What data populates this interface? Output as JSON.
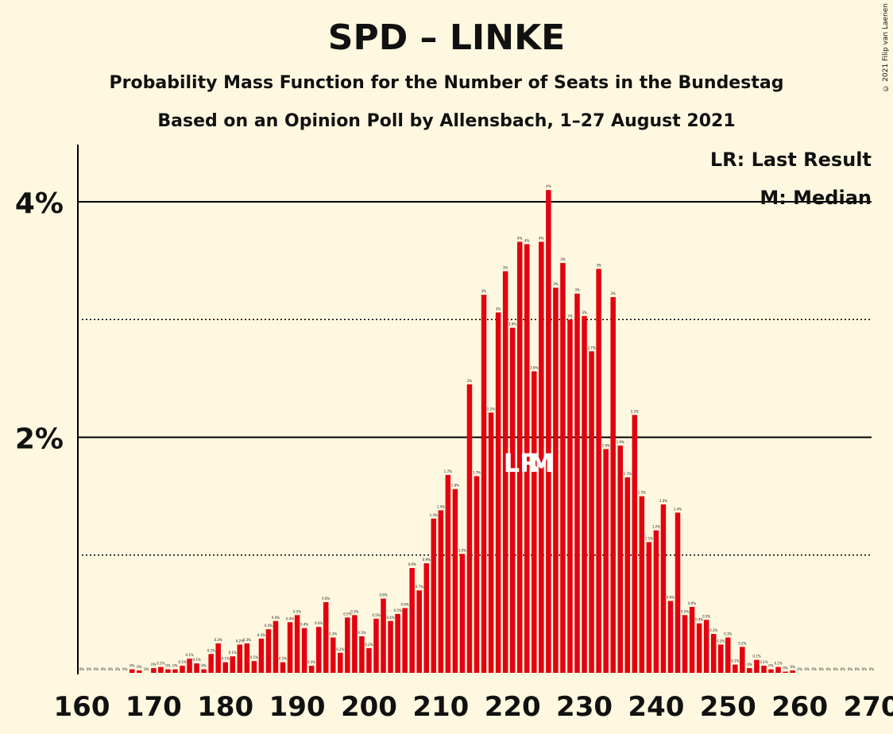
{
  "title": "SPD – LINKE",
  "subtitle": "Probability Mass Function for the Number of Seats in the Bundestag",
  "source": "Based on an Opinion Poll by Allensbach, 1–27 August 2021",
  "copyright": "© 2021 Filip van Laenen",
  "legend": {
    "lr": "LR: Last Result",
    "m": "M: Median"
  },
  "markers": {
    "lr": {
      "seat": 221,
      "label": "LR"
    },
    "median": {
      "seat": 224,
      "label": "M"
    }
  },
  "colors": {
    "bar": "#e3000f",
    "background": "#fff8e0",
    "text": "#111111"
  },
  "chart_data": {
    "type": "bar",
    "title": "SPD – LINKE",
    "xlabel": "",
    "ylabel": "",
    "xlim": [
      160,
      270
    ],
    "ylim": [
      0,
      4.5
    ],
    "x_ticks": [
      160,
      170,
      180,
      190,
      200,
      210,
      220,
      230,
      240,
      250,
      260,
      270
    ],
    "y_ticks": [
      {
        "value": 2,
        "label": "2%"
      },
      {
        "value": 4,
        "label": "4%"
      }
    ],
    "dotted_gridlines": [
      1,
      3
    ],
    "x": [
      160,
      161,
      162,
      163,
      164,
      165,
      166,
      167,
      168,
      169,
      170,
      171,
      172,
      173,
      174,
      175,
      176,
      177,
      178,
      179,
      180,
      181,
      182,
      183,
      184,
      185,
      186,
      187,
      188,
      189,
      190,
      191,
      192,
      193,
      194,
      195,
      196,
      197,
      198,
      199,
      200,
      201,
      202,
      203,
      204,
      205,
      206,
      207,
      208,
      209,
      210,
      211,
      212,
      213,
      214,
      215,
      216,
      217,
      218,
      219,
      220,
      221,
      222,
      223,
      224,
      225,
      226,
      227,
      228,
      229,
      230,
      231,
      232,
      233,
      234,
      235,
      236,
      237,
      238,
      239,
      240,
      241,
      242,
      243,
      244,
      245,
      246,
      247,
      248,
      249,
      250,
      251,
      252,
      253,
      254,
      255,
      256,
      257,
      258,
      259,
      260,
      261,
      262,
      263,
      264,
      265,
      266,
      267,
      268,
      269,
      270
    ],
    "values": [
      0,
      0,
      0,
      0,
      0,
      0,
      0,
      0.03,
      0.02,
      0,
      0.04,
      0.05,
      0.03,
      0.03,
      0.06,
      0.12,
      0.08,
      0.03,
      0.16,
      0.25,
      0.09,
      0.14,
      0.24,
      0.25,
      0.1,
      0.29,
      0.37,
      0.44,
      0.09,
      0.43,
      0.49,
      0.38,
      0.06,
      0.39,
      0.6,
      0.3,
      0.17,
      0.47,
      0.49,
      0.31,
      0.21,
      0.46,
      0.63,
      0.44,
      0.5,
      0.55,
      0.89,
      0.7,
      0.93,
      1.31,
      1.38,
      1.68,
      1.56,
      1.01,
      2.45,
      1.67,
      3.21,
      2.21,
      3.06,
      3.41,
      2.93,
      3.66,
      3.64,
      2.56,
      3.66,
      4.1,
      3.27,
      3.48,
      3.0,
      3.22,
      3.03,
      2.73,
      3.43,
      1.9,
      3.19,
      1.93,
      1.66,
      2.19,
      1.5,
      1.11,
      1.21,
      1.43,
      0.61,
      1.36,
      0.49,
      0.56,
      0.42,
      0.45,
      0.33,
      0.24,
      0.3,
      0.07,
      0.22,
      0.04,
      0.11,
      0.06,
      0.03,
      0.05,
      0.01,
      0.02,
      0,
      0,
      0,
      0,
      0,
      0,
      0,
      0,
      0,
      0,
      0
    ],
    "value_labels": [
      "0%",
      "0%",
      "0%",
      "0%",
      "0%",
      "0%",
      "0%",
      "0%",
      "0%",
      "0%",
      "0%",
      "0.1%",
      "0%",
      "0%",
      "0.1%",
      "0.1%",
      "0.1%",
      "0%",
      "0.2%",
      "0.3%",
      "0.1%",
      "0.1%",
      "0.2%",
      "0.3%",
      "0.1%",
      "0.3%",
      "0.4%",
      "0.4%",
      "0.1%",
      "0.4%",
      "0.5%",
      "0.4%",
      "0.1%",
      "0.4%",
      "0.6%",
      "0.3%",
      "0.2%",
      "0.5%",
      "0.5%",
      "0.3%",
      "0.2%",
      "0.5%",
      "0.6%",
      "0.4%",
      "0.5%",
      "0.6%",
      "0.9%",
      "0.7%",
      "0.9%",
      "1.3%",
      "1.4%",
      "1.7%",
      "1.6%",
      "1.0%",
      "2%",
      "1.7%",
      "3%",
      "2.2%",
      "3%",
      "3%",
      "2.9%",
      "4%",
      "4%",
      "2.6%",
      "4%",
      "4%",
      "3%",
      "3%",
      "3%",
      "3%",
      "3%",
      "2.7%",
      "3%",
      "1.9%",
      "3%",
      "1.9%",
      "1.7%",
      "2.2%",
      "1.5%",
      "1.1%",
      "1.2%",
      "1.4%",
      "0.6%",
      "1.4%",
      "0.5%",
      "0.6%",
      "0.4%",
      "0.5%",
      "0.3%",
      "0.2%",
      "0.3%",
      "0.1%",
      "0.2%",
      "0%",
      "0.1%",
      "0.1%",
      "0%",
      "0.1%",
      "0%",
      "0%",
      "0%",
      "0%",
      "0%",
      "0%",
      "0%",
      "0%",
      "0%",
      "0%",
      "0%",
      "0%",
      "0%"
    ]
  }
}
